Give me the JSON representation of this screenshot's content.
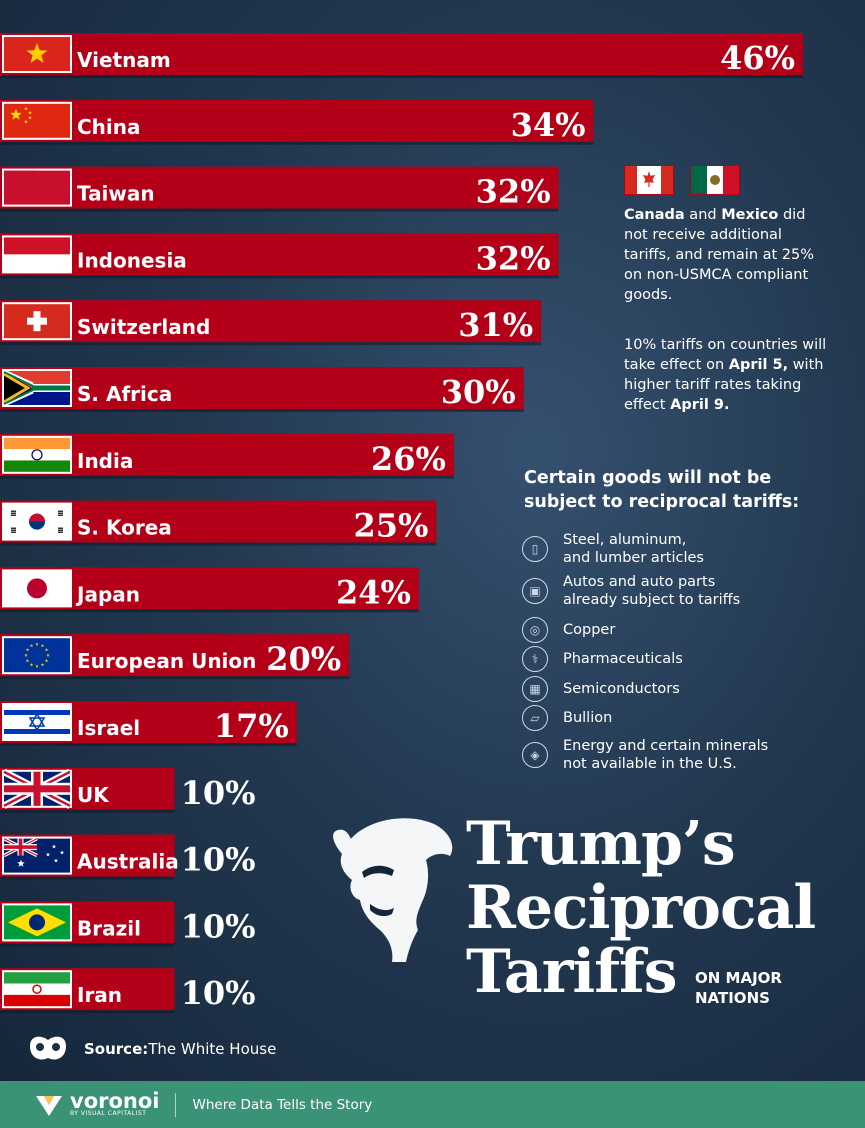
{
  "chart_data": {
    "type": "bar",
    "orientation": "horizontal",
    "categories": [
      "Vietnam",
      "China",
      "Taiwan",
      "Indonesia",
      "Switzerland",
      "S. Africa",
      "India",
      "S. Korea",
      "Japan",
      "European Union",
      "Israel",
      "UK",
      "Australia",
      "Brazil",
      "Iran"
    ],
    "values": [
      46,
      34,
      32,
      32,
      31,
      30,
      26,
      25,
      24,
      20,
      17,
      10,
      10,
      10,
      10
    ],
    "value_labels": [
      "46%",
      "34%",
      "32%",
      "32%",
      "31%",
      "30%",
      "26%",
      "25%",
      "24%",
      "20%",
      "17%",
      "10%",
      "10%",
      "10%",
      "10%"
    ],
    "flags": [
      "vietnam-flag",
      "china-flag",
      "taiwan-flag",
      "indonesia-flag",
      "switzerland-flag",
      "south-africa-flag",
      "india-flag",
      "south-korea-flag",
      "japan-flag",
      "eu-flag",
      "israel-flag",
      "uk-flag",
      "australia-flag",
      "brazil-flag",
      "iran-flag"
    ],
    "xlim": [
      0,
      46
    ],
    "bar_color": "#b30018",
    "title": "Trump's Reciprocal Tariffs",
    "subtitle": "ON MAJOR NATIONS"
  },
  "notes": {
    "canada_mexico_flags": [
      "canada-flag",
      "mexico-flag"
    ],
    "canada_mexico": {
      "canada": "Canada",
      "and": " and ",
      "mexico": "Mexico",
      "rest": " did not receive additional tariffs, and remain at 25% on non-USMCA compliant goods."
    },
    "effective": {
      "pre": "10% tariffs on countries will take effect on ",
      "date1": "April 5,",
      "mid": " with higher tariff rates taking effect ",
      "date2": "April 9."
    }
  },
  "goods": {
    "heading": "Certain goods will not be subject to reciprocal tariffs:",
    "items": [
      {
        "icon": "steel-icon",
        "lines": [
          "Steel, aluminum,",
          "and lumber articles"
        ]
      },
      {
        "icon": "car-icon",
        "lines": [
          "Autos and auto parts",
          "already subject to tariffs"
        ]
      },
      {
        "icon": "copper-icon",
        "lines": [
          "Copper"
        ]
      },
      {
        "icon": "pharmaceutical-icon",
        "lines": [
          "Pharmaceuticals"
        ]
      },
      {
        "icon": "chip-icon",
        "lines": [
          "Semiconductors"
        ]
      },
      {
        "icon": "bullion-icon",
        "lines": [
          "Bullion"
        ]
      },
      {
        "icon": "mineral-icon",
        "lines": [
          "Energy and certain minerals",
          "not available in the U.S."
        ]
      }
    ]
  },
  "title_lines": [
    "Trump’s",
    "Reciprocal",
    "Tariffs"
  ],
  "subtitle_lines": [
    "ON MAJOR",
    "NATIONS"
  ],
  "source": {
    "label": "Source:",
    "value": " The White House"
  },
  "footer": {
    "brand": "voronoi",
    "by": "BY VISUAL CAPITALIST",
    "tagline": "Where Data Tells the Story"
  },
  "colors": {
    "bar": "#b30018",
    "background": "#22384f",
    "footer": "#3a9277",
    "text": "#ffffff"
  }
}
